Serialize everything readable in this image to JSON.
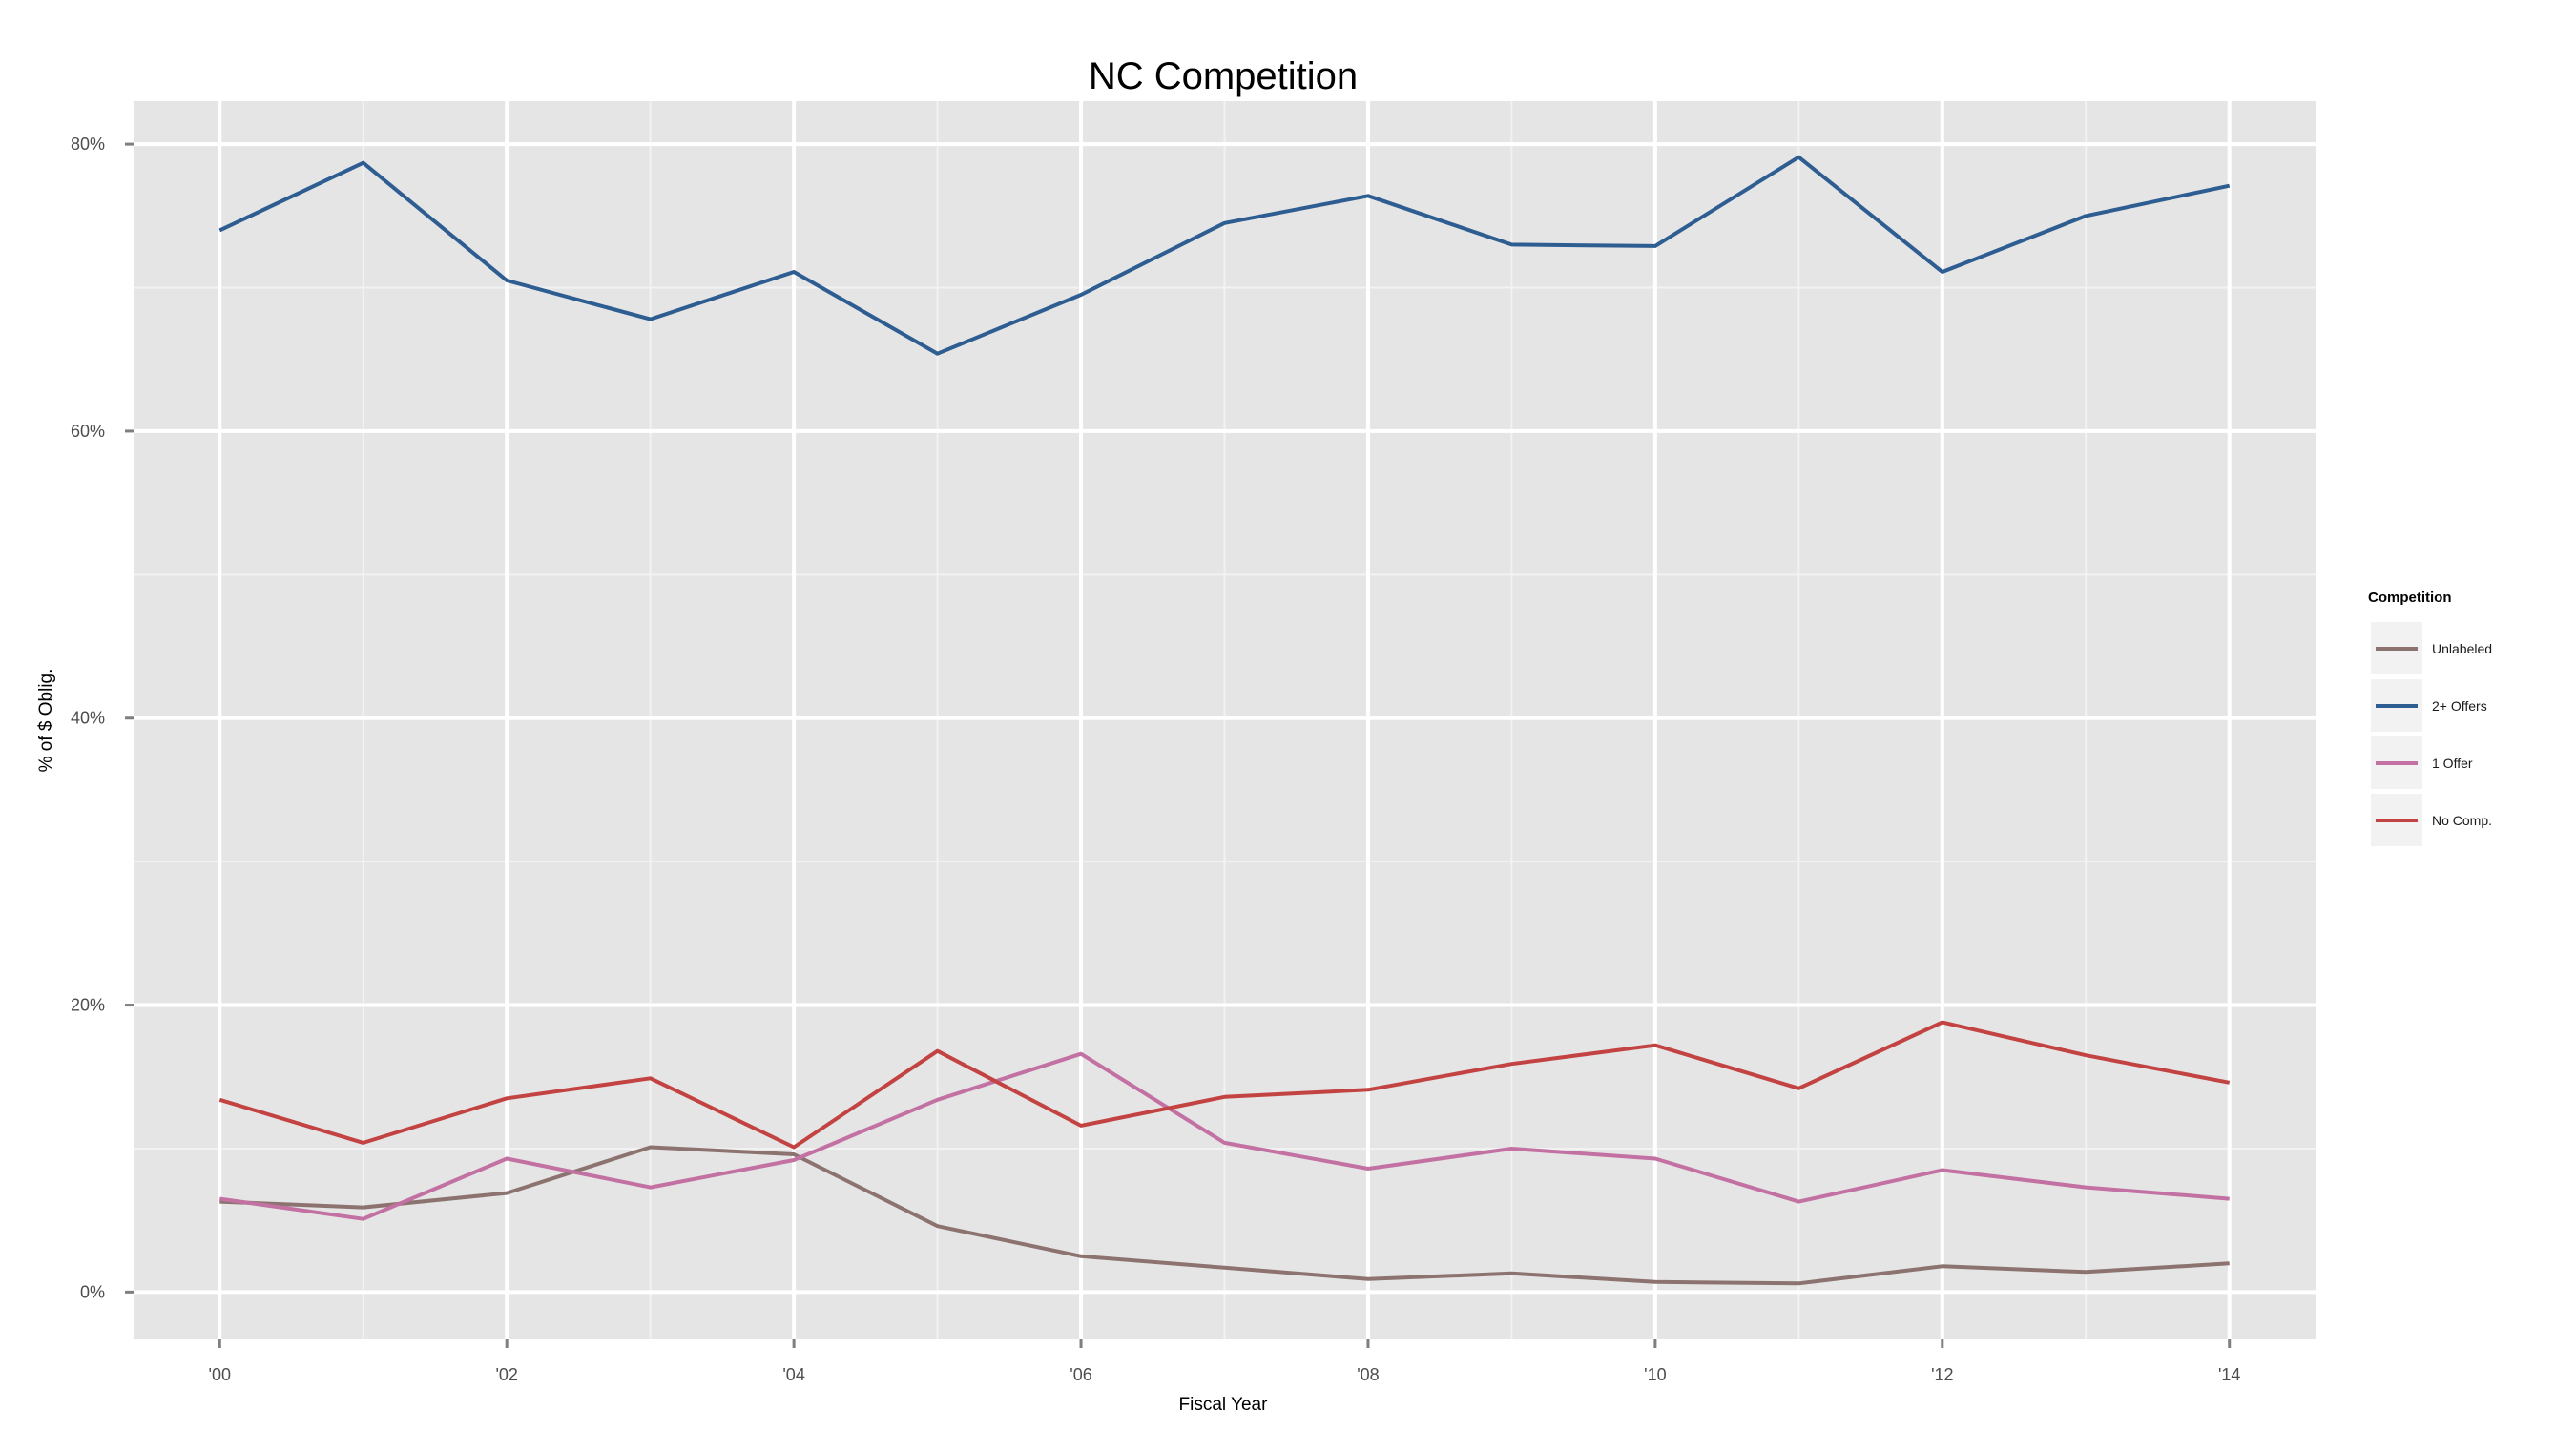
{
  "chart_data": {
    "type": "line",
    "title": "NC Competition",
    "xlabel": "Fiscal Year",
    "ylabel": "% of $ Oblig.",
    "x": [
      2000,
      2001,
      2002,
      2003,
      2004,
      2005,
      2006,
      2007,
      2008,
      2009,
      2010,
      2011,
      2012,
      2013,
      2014
    ],
    "x_ticks": [
      2000,
      2002,
      2004,
      2006,
      2008,
      2010,
      2012,
      2014
    ],
    "x_tick_labels": [
      "'00",
      "'02",
      "'04",
      "'06",
      "'08",
      "'10",
      "'12",
      "'14"
    ],
    "xlim": [
      1999.4,
      2014.6
    ],
    "y_ticks": [
      0,
      20,
      40,
      60,
      80
    ],
    "y_tick_labels": [
      "0%",
      "20%",
      "40%",
      "60%",
      "80%"
    ],
    "ylim": [
      -3.3,
      83
    ],
    "grid": true,
    "background": "#e5e5e5",
    "legend": {
      "title": "Competition",
      "placement": "right"
    },
    "series": [
      {
        "name": "Unlabeled",
        "color": "#8c7370",
        "values": [
          6.3,
          5.9,
          6.9,
          10.1,
          9.6,
          4.6,
          2.5,
          1.7,
          0.9,
          1.3,
          0.7,
          0.6,
          1.8,
          1.4,
          2.0
        ]
      },
      {
        "name": "2+ Offers",
        "color": "#2e5d91",
        "values": [
          74.0,
          78.7,
          70.5,
          67.8,
          71.1,
          65.4,
          69.5,
          74.5,
          76.4,
          73.0,
          72.9,
          79.1,
          71.1,
          75.0,
          77.1
        ]
      },
      {
        "name": "1 Offer",
        "color": "#c271a2",
        "values": [
          6.5,
          5.1,
          9.3,
          7.3,
          9.2,
          13.4,
          16.6,
          10.4,
          8.6,
          10.0,
          9.3,
          6.3,
          8.5,
          7.3,
          6.5
        ]
      },
      {
        "name": "No Comp.",
        "color": "#c24342",
        "values": [
          13.4,
          10.4,
          13.5,
          14.9,
          10.1,
          16.8,
          11.6,
          13.6,
          14.1,
          15.9,
          17.2,
          14.2,
          18.8,
          16.5,
          14.6
        ]
      }
    ]
  }
}
